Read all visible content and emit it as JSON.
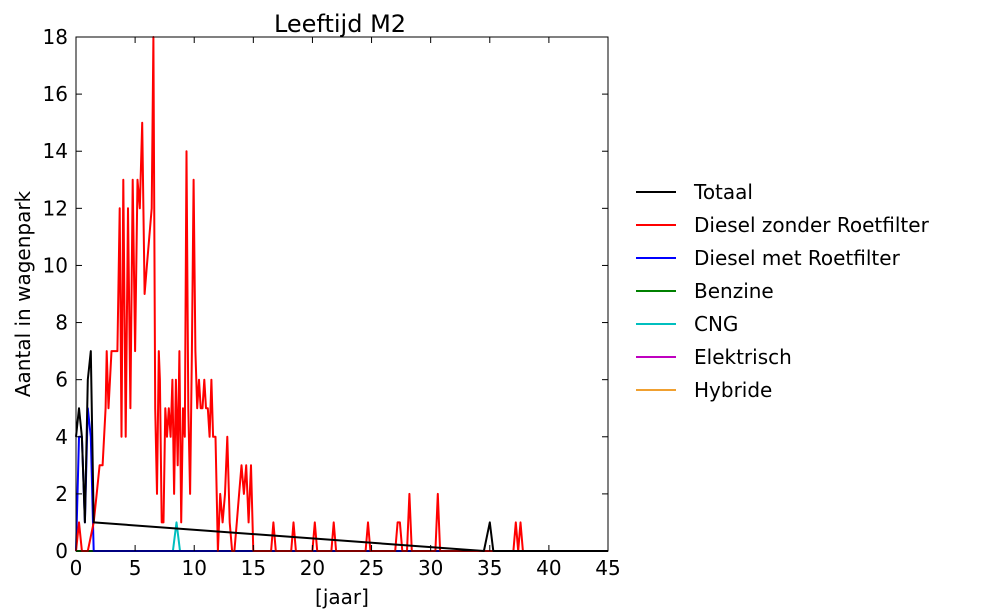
{
  "chart_data": {
    "type": "line",
    "title": "Leeftijd M2",
    "xlabel": "[jaar]",
    "ylabel": "Aantal in wagenpark",
    "xlim": [
      0,
      45
    ],
    "ylim": [
      0,
      18
    ],
    "xticks": [
      0,
      5,
      10,
      15,
      20,
      25,
      30,
      35,
      40,
      45
    ],
    "yticks": [
      0,
      2,
      4,
      6,
      8,
      10,
      12,
      14,
      16,
      18
    ],
    "grid": false,
    "legend_position": "right, outside plot",
    "series": [
      {
        "name": "Totaal",
        "color": "#000000",
        "points": [
          [
            0,
            4
          ],
          [
            0.25,
            5
          ],
          [
            0.5,
            4
          ],
          [
            0.75,
            1
          ],
          [
            1.0,
            6
          ],
          [
            1.25,
            7
          ],
          [
            1.5,
            1
          ],
          [
            34.5,
            0
          ],
          [
            35,
            1
          ],
          [
            35.3,
            0
          ],
          [
            45,
            0
          ]
        ]
      },
      {
        "name": "Diesel zonder Roetfilter",
        "color": "#ff0000",
        "points": [
          [
            0,
            0
          ],
          [
            0.25,
            1
          ],
          [
            0.5,
            0
          ],
          [
            1.0,
            0
          ],
          [
            1.5,
            1
          ],
          [
            1.75,
            2
          ],
          [
            2.0,
            3
          ],
          [
            2.25,
            3
          ],
          [
            2.5,
            5
          ],
          [
            2.6,
            7
          ],
          [
            2.75,
            5
          ],
          [
            3.0,
            7
          ],
          [
            3.25,
            7
          ],
          [
            3.5,
            7
          ],
          [
            3.7,
            12
          ],
          [
            3.85,
            4
          ],
          [
            4.0,
            13
          ],
          [
            4.2,
            4
          ],
          [
            4.4,
            12
          ],
          [
            4.6,
            5
          ],
          [
            4.8,
            13
          ],
          [
            5.0,
            7
          ],
          [
            5.2,
            13
          ],
          [
            5.4,
            12
          ],
          [
            5.6,
            15
          ],
          [
            5.8,
            9
          ],
          [
            6.0,
            10
          ],
          [
            6.2,
            11
          ],
          [
            6.4,
            12
          ],
          [
            6.55,
            18
          ],
          [
            6.7,
            5
          ],
          [
            6.85,
            2
          ],
          [
            7.0,
            7
          ],
          [
            7.1,
            6
          ],
          [
            7.25,
            1
          ],
          [
            7.4,
            1
          ],
          [
            7.55,
            5
          ],
          [
            7.7,
            4
          ],
          [
            7.85,
            5
          ],
          [
            8.0,
            4
          ],
          [
            8.15,
            6
          ],
          [
            8.3,
            2
          ],
          [
            8.45,
            6
          ],
          [
            8.6,
            3
          ],
          [
            8.75,
            7
          ],
          [
            8.9,
            1
          ],
          [
            9.05,
            5
          ],
          [
            9.2,
            4
          ],
          [
            9.35,
            14
          ],
          [
            9.5,
            5
          ],
          [
            9.65,
            2
          ],
          [
            9.8,
            7
          ],
          [
            9.95,
            13
          ],
          [
            10.1,
            7
          ],
          [
            10.25,
            5
          ],
          [
            10.4,
            6
          ],
          [
            10.55,
            5
          ],
          [
            10.7,
            5
          ],
          [
            10.85,
            6
          ],
          [
            11.0,
            5
          ],
          [
            11.15,
            5
          ],
          [
            11.3,
            4
          ],
          [
            11.45,
            6
          ],
          [
            11.6,
            4
          ],
          [
            11.8,
            4
          ],
          [
            12.0,
            0
          ],
          [
            12.2,
            2
          ],
          [
            12.4,
            1
          ],
          [
            12.6,
            2
          ],
          [
            12.8,
            4
          ],
          [
            13.0,
            1
          ],
          [
            13.2,
            0
          ],
          [
            13.4,
            0
          ],
          [
            13.6,
            1
          ],
          [
            13.8,
            2
          ],
          [
            14.0,
            3
          ],
          [
            14.2,
            2
          ],
          [
            14.4,
            3
          ],
          [
            14.6,
            1
          ],
          [
            14.8,
            3
          ],
          [
            15.0,
            0
          ],
          [
            16.5,
            0
          ],
          [
            16.7,
            1
          ],
          [
            16.9,
            0
          ],
          [
            18.2,
            0
          ],
          [
            18.4,
            1
          ],
          [
            18.6,
            0
          ],
          [
            20.0,
            0
          ],
          [
            20.2,
            1
          ],
          [
            20.4,
            0
          ],
          [
            21.6,
            0
          ],
          [
            21.8,
            1
          ],
          [
            22.0,
            0
          ],
          [
            24.5,
            0
          ],
          [
            24.7,
            1
          ],
          [
            24.9,
            0
          ],
          [
            27.0,
            0
          ],
          [
            27.2,
            1
          ],
          [
            27.4,
            1
          ],
          [
            27.6,
            0
          ],
          [
            28.0,
            0
          ],
          [
            28.2,
            2
          ],
          [
            28.4,
            0
          ],
          [
            30.4,
            0
          ],
          [
            30.6,
            2
          ],
          [
            30.8,
            0
          ],
          [
            37.0,
            0
          ],
          [
            37.2,
            1
          ],
          [
            37.4,
            0
          ],
          [
            37.6,
            1
          ],
          [
            37.8,
            0
          ],
          [
            45,
            0
          ]
        ]
      },
      {
        "name": "Diesel met Roetfilter",
        "color": "#0000ff",
        "points": [
          [
            0,
            0
          ],
          [
            0.25,
            4
          ],
          [
            0.5,
            4
          ],
          [
            0.75,
            1
          ],
          [
            1.0,
            5
          ],
          [
            1.25,
            4
          ],
          [
            1.5,
            0
          ],
          [
            45,
            0
          ]
        ]
      },
      {
        "name": "Benzine",
        "color": "#008000",
        "points": [
          [
            0,
            0
          ],
          [
            45,
            0
          ]
        ]
      },
      {
        "name": "CNG",
        "color": "#00bfbf",
        "points": [
          [
            0,
            0
          ],
          [
            8.2,
            0
          ],
          [
            8.5,
            1
          ],
          [
            8.8,
            0
          ],
          [
            45,
            0
          ]
        ]
      },
      {
        "name": "Elektrisch",
        "color": "#bf00bf",
        "points": [
          [
            0,
            0
          ],
          [
            45,
            0
          ]
        ]
      },
      {
        "name": "Hybride",
        "color": "#f0a030",
        "points": [
          [
            0,
            0
          ],
          [
            45,
            0
          ]
        ]
      }
    ]
  }
}
